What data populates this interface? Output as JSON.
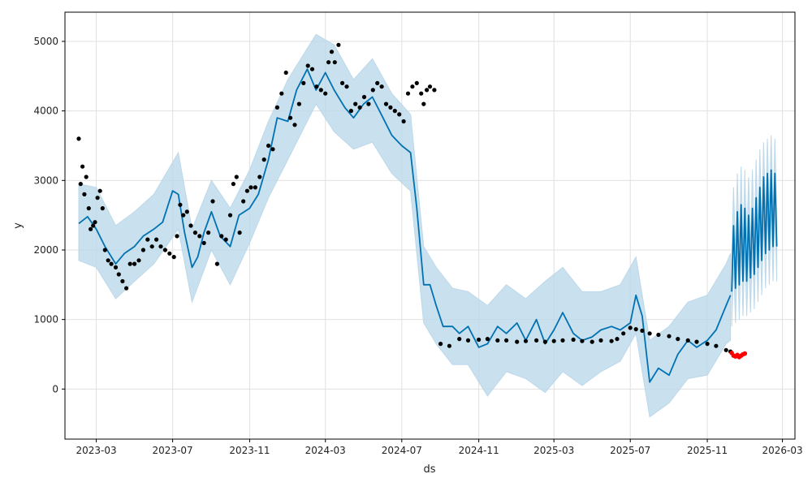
{
  "chart_data": {
    "type": "line",
    "title": "",
    "xlabel": "ds",
    "ylabel": "y",
    "grid": true,
    "x_range": [
      "2023-01-10",
      "2026-03-21"
    ],
    "ylim": [
      -720,
      5420
    ],
    "x_ticks": [
      {
        "date": "2023-03-01",
        "label": "2023-03"
      },
      {
        "date": "2023-07-01",
        "label": "2023-07"
      },
      {
        "date": "2023-11-01",
        "label": "2023-11"
      },
      {
        "date": "2024-03-01",
        "label": "2024-03"
      },
      {
        "date": "2024-07-01",
        "label": "2024-07"
      },
      {
        "date": "2024-11-01",
        "label": "2024-11"
      },
      {
        "date": "2025-03-01",
        "label": "2025-03"
      },
      {
        "date": "2025-07-01",
        "label": "2025-07"
      },
      {
        "date": "2025-11-01",
        "label": "2025-11"
      },
      {
        "date": "2026-03-01",
        "label": "2026-03"
      }
    ],
    "y_ticks": [
      0,
      1000,
      2000,
      3000,
      4000,
      5000
    ],
    "colors": {
      "forecast_line": "#0072b2",
      "uncertainty_band": "#bcd8ea",
      "actual_points": "#000000",
      "recent_points": "#ff0000",
      "grid": "#e0e0e0",
      "axis": "#000000"
    },
    "series": [
      {
        "role": "forecast",
        "x": [
          "2023-02-01",
          "2023-02-15",
          "2023-03-01",
          "2023-03-15",
          "2023-04-01",
          "2023-04-15",
          "2023-05-01",
          "2023-05-15",
          "2023-06-01",
          "2023-06-15",
          "2023-07-01",
          "2023-07-10",
          "2023-07-20",
          "2023-08-01",
          "2023-08-10",
          "2023-08-20",
          "2023-09-01",
          "2023-09-15",
          "2023-10-01",
          "2023-10-15",
          "2023-11-01",
          "2023-11-15",
          "2023-12-01",
          "2023-12-15",
          "2024-01-01",
          "2024-01-15",
          "2024-02-01",
          "2024-02-15",
          "2024-03-01",
          "2024-03-15",
          "2024-04-01",
          "2024-04-15",
          "2024-05-01",
          "2024-05-15",
          "2024-06-01",
          "2024-06-15",
          "2024-07-01",
          "2024-07-15",
          "2024-07-25",
          "2024-08-05",
          "2024-08-15",
          "2024-08-25",
          "2024-09-05",
          "2024-09-20",
          "2024-10-01",
          "2024-10-15",
          "2024-11-01",
          "2024-11-15",
          "2024-12-01",
          "2024-12-15",
          "2025-01-01",
          "2025-01-15",
          "2025-02-01",
          "2025-02-15",
          "2025-03-01",
          "2025-03-15",
          "2025-04-01",
          "2025-04-15",
          "2025-05-01",
          "2025-05-15",
          "2025-06-01",
          "2025-06-15",
          "2025-07-01",
          "2025-07-10",
          "2025-07-20",
          "2025-08-01",
          "2025-08-15",
          "2025-09-01",
          "2025-09-15",
          "2025-10-01",
          "2025-10-15",
          "2025-11-01",
          "2025-11-15",
          "2025-12-01",
          "2025-12-08"
        ],
        "y": [
          2380,
          2480,
          2300,
          2050,
          1800,
          1950,
          2050,
          2200,
          2300,
          2400,
          2850,
          2800,
          2250,
          1750,
          1900,
          2250,
          2550,
          2200,
          2050,
          2500,
          2600,
          2800,
          3300,
          3900,
          3850,
          4300,
          4600,
          4300,
          4550,
          4300,
          4050,
          3900,
          4100,
          4200,
          3900,
          3650,
          3500,
          3400,
          2600,
          1500,
          1500,
          1200,
          900,
          900,
          800,
          900,
          600,
          650,
          900,
          800,
          950,
          700,
          1000,
          650,
          850,
          1100,
          800,
          700,
          750,
          850,
          900,
          850,
          950,
          1350,
          1050,
          100,
          300,
          200,
          500,
          700,
          600,
          700,
          850,
          1200,
          1350
        ]
      },
      {
        "role": "forecast_upper",
        "x": [
          "2023-02-01",
          "2023-03-01",
          "2023-04-01",
          "2023-05-01",
          "2023-06-01",
          "2023-07-10",
          "2023-08-01",
          "2023-09-01",
          "2023-10-01",
          "2023-11-01",
          "2023-12-01",
          "2024-01-01",
          "2024-02-15",
          "2024-03-15",
          "2024-04-15",
          "2024-05-15",
          "2024-06-15",
          "2024-07-15",
          "2024-08-05",
          "2024-08-25",
          "2024-09-20",
          "2024-10-15",
          "2024-11-15",
          "2024-12-15",
          "2025-01-15",
          "2025-02-15",
          "2025-03-15",
          "2025-04-15",
          "2025-05-15",
          "2025-06-15",
          "2025-07-10",
          "2025-08-01",
          "2025-09-01",
          "2025-10-01",
          "2025-11-01",
          "2025-12-01",
          "2025-12-08"
        ],
        "y": [
          2950,
          2900,
          2350,
          2550,
          2800,
          3400,
          2300,
          3000,
          2600,
          3150,
          3850,
          4450,
          5100,
          4950,
          4450,
          4750,
          4250,
          3950,
          2050,
          1750,
          1450,
          1400,
          1200,
          1500,
          1300,
          1550,
          1750,
          1400,
          1400,
          1500,
          1900,
          700,
          900,
          1250,
          1350,
          1800,
          1950
        ]
      },
      {
        "role": "forecast_lower",
        "x": [
          "2023-02-01",
          "2023-03-01",
          "2023-04-01",
          "2023-05-01",
          "2023-06-01",
          "2023-07-10",
          "2023-08-01",
          "2023-09-01",
          "2023-10-01",
          "2023-11-01",
          "2023-12-01",
          "2024-01-01",
          "2024-02-15",
          "2024-03-15",
          "2024-04-15",
          "2024-05-15",
          "2024-06-15",
          "2024-07-15",
          "2024-08-05",
          "2024-08-25",
          "2024-09-20",
          "2024-10-15",
          "2024-11-15",
          "2024-12-15",
          "2025-01-15",
          "2025-02-15",
          "2025-03-15",
          "2025-04-15",
          "2025-05-15",
          "2025-06-15",
          "2025-07-10",
          "2025-08-01",
          "2025-09-01",
          "2025-10-01",
          "2025-11-01",
          "2025-12-01",
          "2025-12-08"
        ],
        "y": [
          1850,
          1750,
          1300,
          1550,
          1800,
          2300,
          1250,
          2000,
          1500,
          2100,
          2750,
          3300,
          4100,
          3700,
          3450,
          3550,
          3100,
          2850,
          950,
          650,
          350,
          350,
          -100,
          250,
          150,
          -50,
          250,
          50,
          250,
          400,
          800,
          -400,
          -200,
          150,
          200,
          650,
          700
        ]
      },
      {
        "role": "forecast_future",
        "x": [
          "2025-12-10",
          "2025-12-13",
          "2025-12-16",
          "2025-12-19",
          "2025-12-22",
          "2025-12-25",
          "2025-12-28",
          "2025-12-31",
          "2026-01-03",
          "2026-01-06",
          "2026-01-09",
          "2026-01-12",
          "2026-01-15",
          "2026-01-18",
          "2026-01-21",
          "2026-01-24",
          "2026-01-27",
          "2026-01-30",
          "2026-02-02",
          "2026-02-05",
          "2026-02-08",
          "2026-02-11",
          "2026-02-14",
          "2026-02-17",
          "2026-02-20"
        ],
        "y": [
          1400,
          2350,
          1450,
          2550,
          1500,
          2650,
          1550,
          2600,
          1550,
          2500,
          1600,
          2600,
          1650,
          2750,
          1750,
          2900,
          1850,
          3050,
          1950,
          3100,
          2000,
          3150,
          2050,
          3100,
          2050
        ]
      },
      {
        "role": "forecast_future_upper",
        "x": [
          "2025-12-10",
          "2025-12-13",
          "2025-12-16",
          "2025-12-19",
          "2025-12-22",
          "2025-12-25",
          "2025-12-28",
          "2025-12-31",
          "2026-01-03",
          "2026-01-06",
          "2026-01-09",
          "2026-01-12",
          "2026-01-15",
          "2026-01-18",
          "2026-01-21",
          "2026-01-24",
          "2026-01-27",
          "2026-01-30",
          "2026-02-02",
          "2026-02-05",
          "2026-02-08",
          "2026-02-11",
          "2026-02-14",
          "2026-02-17",
          "2026-02-20"
        ],
        "y": [
          1850,
          2900,
          1950,
          3100,
          2000,
          3200,
          2050,
          3150,
          2050,
          3050,
          2100,
          3150,
          2150,
          3300,
          2250,
          3450,
          2350,
          3550,
          2450,
          3600,
          2500,
          3650,
          2550,
          3600,
          2550
        ]
      },
      {
        "role": "forecast_future_lower",
        "x": [
          "2025-12-10",
          "2025-12-13",
          "2025-12-16",
          "2025-12-19",
          "2025-12-22",
          "2025-12-25",
          "2025-12-28",
          "2025-12-31",
          "2026-01-03",
          "2026-01-06",
          "2026-01-09",
          "2026-01-12",
          "2026-01-15",
          "2026-01-18",
          "2026-01-21",
          "2026-01-24",
          "2026-01-27",
          "2026-01-30",
          "2026-02-02",
          "2026-02-05",
          "2026-02-08",
          "2026-02-11",
          "2026-02-14",
          "2026-02-17",
          "2026-02-20"
        ],
        "y": [
          900,
          1800,
          950,
          2000,
          1000,
          2100,
          1050,
          2050,
          1050,
          1950,
          1100,
          2050,
          1150,
          2200,
          1250,
          2350,
          1350,
          2500,
          1450,
          2550,
          1500,
          2600,
          1550,
          2600,
          1550
        ]
      },
      {
        "role": "actual",
        "x": [
          "2023-02-01",
          "2023-02-04",
          "2023-02-07",
          "2023-02-10",
          "2023-02-13",
          "2023-02-17",
          "2023-02-20",
          "2023-02-24",
          "2023-02-27",
          "2023-03-03",
          "2023-03-07",
          "2023-03-11",
          "2023-03-15",
          "2023-03-20",
          "2023-03-25",
          "2023-04-01",
          "2023-04-06",
          "2023-04-12",
          "2023-04-18",
          "2023-04-24",
          "2023-05-01",
          "2023-05-08",
          "2023-05-15",
          "2023-05-22",
          "2023-05-29",
          "2023-06-05",
          "2023-06-12",
          "2023-06-19",
          "2023-06-26",
          "2023-07-03",
          "2023-07-08",
          "2023-07-13",
          "2023-07-18",
          "2023-07-24",
          "2023-07-30",
          "2023-08-06",
          "2023-08-13",
          "2023-08-20",
          "2023-08-27",
          "2023-09-03",
          "2023-09-10",
          "2023-09-17",
          "2023-09-24",
          "2023-10-01",
          "2023-10-06",
          "2023-10-11",
          "2023-10-16",
          "2023-10-22",
          "2023-10-28",
          "2023-11-03",
          "2023-11-10",
          "2023-11-17",
          "2023-11-24",
          "2023-12-01",
          "2023-12-08",
          "2023-12-15",
          "2023-12-22",
          "2023-12-29",
          "2024-01-05",
          "2024-01-12",
          "2024-01-19",
          "2024-01-26",
          "2024-02-02",
          "2024-02-09",
          "2024-02-16",
          "2024-02-23",
          "2024-03-01",
          "2024-03-06",
          "2024-03-11",
          "2024-03-16",
          "2024-03-22",
          "2024-03-28",
          "2024-04-04",
          "2024-04-11",
          "2024-04-18",
          "2024-04-25",
          "2024-05-02",
          "2024-05-09",
          "2024-05-16",
          "2024-05-23",
          "2024-05-30",
          "2024-06-06",
          "2024-06-13",
          "2024-06-20",
          "2024-06-27",
          "2024-07-04",
          "2024-07-11",
          "2024-07-18",
          "2024-07-25",
          "2024-08-01",
          "2024-08-05",
          "2024-08-10",
          "2024-08-15",
          "2024-08-22",
          "2024-09-01",
          "2024-09-15",
          "2024-10-01",
          "2024-10-15",
          "2024-11-01",
          "2024-11-15",
          "2024-12-01",
          "2024-12-15",
          "2025-01-01",
          "2025-01-15",
          "2025-02-01",
          "2025-02-15",
          "2025-03-01",
          "2025-03-15",
          "2025-04-01",
          "2025-04-15",
          "2025-05-01",
          "2025-05-15",
          "2025-06-01",
          "2025-06-10",
          "2025-06-20",
          "2025-07-01",
          "2025-07-10",
          "2025-07-20",
          "2025-08-01",
          "2025-08-15",
          "2025-09-01",
          "2025-09-15",
          "2025-10-01",
          "2025-10-15",
          "2025-11-01",
          "2025-11-15",
          "2025-12-01",
          "2025-12-08"
        ],
        "y": [
          3600,
          2950,
          3200,
          2800,
          3050,
          2600,
          2300,
          2350,
          2400,
          2750,
          2850,
          2600,
          2000,
          1850,
          1800,
          1750,
          1650,
          1550,
          1450,
          1800,
          1800,
          1850,
          2000,
          2150,
          2050,
          2150,
          2050,
          2000,
          1950,
          1900,
          2200,
          2650,
          2500,
          2550,
          2350,
          2250,
          2200,
          2100,
          2250,
          2700,
          1800,
          2200,
          2150,
          2500,
          2950,
          3050,
          2250,
          2700,
          2850,
          2900,
          2900,
          3050,
          3300,
          3500,
          3450,
          4050,
          4250,
          4550,
          3900,
          3800,
          4100,
          4400,
          4650,
          4600,
          4350,
          4300,
          4250,
          4700,
          4850,
          4700,
          4950,
          4400,
          4350,
          4000,
          4100,
          4050,
          4200,
          4100,
          4300,
          4400,
          4350,
          4100,
          4050,
          4000,
          3950,
          3850,
          4250,
          4350,
          4400,
          4250,
          4100,
          4300,
          4350,
          4300,
          650,
          620,
          720,
          700,
          710,
          720,
          700,
          700,
          680,
          690,
          700,
          680,
          690,
          700,
          710,
          690,
          680,
          700,
          690,
          720,
          800,
          880,
          860,
          840,
          800,
          780,
          760,
          720,
          700,
          680,
          650,
          620,
          560,
          540
        ]
      },
      {
        "role": "recent",
        "x": [
          "2025-12-10",
          "2025-12-13",
          "2025-12-16",
          "2025-12-19",
          "2025-12-22",
          "2025-12-25",
          "2025-12-28",
          "2025-12-31"
        ],
        "y": [
          520,
          480,
          470,
          490,
          460,
          480,
          500,
          510
        ]
      }
    ]
  }
}
